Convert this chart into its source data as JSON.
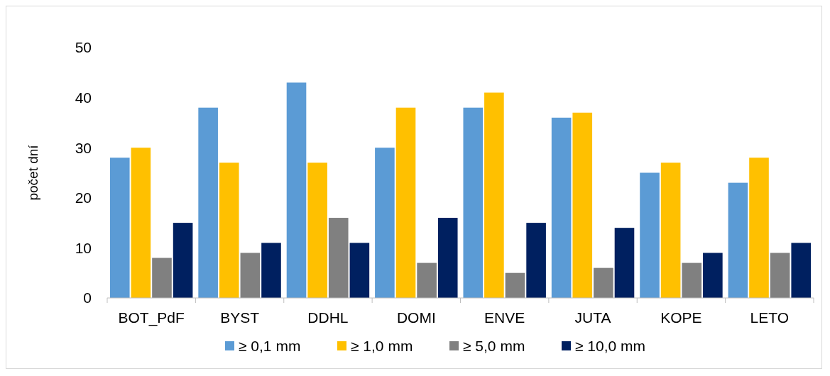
{
  "chart_data": {
    "type": "bar",
    "ylabel": "počet dní",
    "categories": [
      "BOT_PdF",
      "BYST",
      "DDHL",
      "DOMI",
      "ENVE",
      "JUTA",
      "KOPE",
      "LETO"
    ],
    "series": [
      {
        "name": "≥ 0,1 mm",
        "color": "#5b9bd5",
        "values": [
          28,
          38,
          43,
          30,
          38,
          36,
          25,
          23
        ]
      },
      {
        "name": "≥ 1,0 mm",
        "color": "#ffc000",
        "values": [
          30,
          27,
          27,
          38,
          41,
          37,
          27,
          28
        ]
      },
      {
        "name": "≥ 5,0 mm",
        "color": "#808080",
        "values": [
          8,
          9,
          16,
          7,
          5,
          6,
          7,
          9
        ]
      },
      {
        "name": "≥ 10,0 mm",
        "color": "#002060",
        "values": [
          15,
          11,
          11,
          16,
          15,
          14,
          9,
          11
        ]
      }
    ],
    "ylim": [
      0,
      50
    ],
    "yticks": [
      0,
      10,
      20,
      30,
      40,
      50
    ],
    "grid": false,
    "legend": "bottom"
  }
}
